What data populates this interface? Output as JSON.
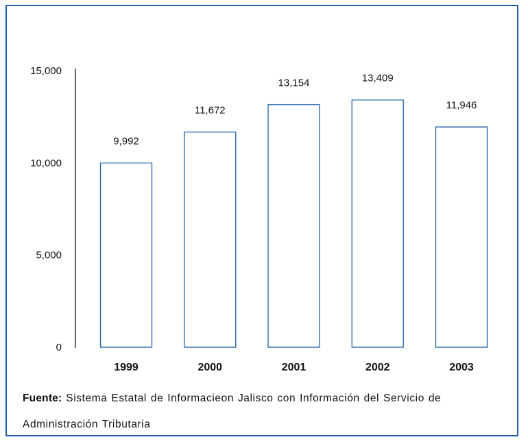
{
  "chart_data": {
    "type": "bar",
    "categories": [
      "1999",
      "2000",
      "2001",
      "2002",
      "2003"
    ],
    "values": [
      9992,
      11672,
      13154,
      13409,
      11946
    ],
    "value_labels": [
      "9,992",
      "11,672",
      "13,154",
      "13,409",
      "11,946"
    ],
    "yticks": [
      0,
      5000,
      10000,
      15000
    ],
    "ytick_labels": [
      "0",
      "5,000",
      "10,000",
      "15,000"
    ],
    "ylim": [
      0,
      15000
    ],
    "title": "",
    "xlabel": "",
    "ylabel": "",
    "grid": false,
    "bar_fill": "#ffffff",
    "bar_stroke": "#1f5fa8"
  },
  "source": {
    "prefix": "Fuente:",
    "text": "Sistema Estatal de Informacieon Jalisco con Información del Servicio de Administración Tributaria"
  },
  "colors": {
    "frame": "#1f5fa8",
    "axis": "#111111",
    "text": "#111111"
  }
}
